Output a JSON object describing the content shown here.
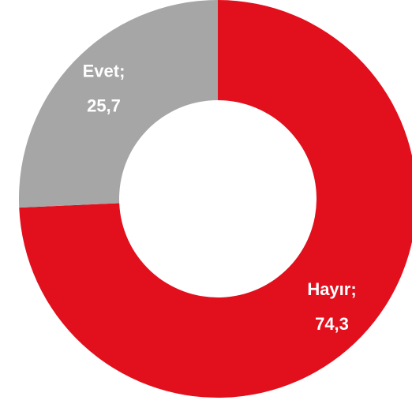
{
  "chart_data": {
    "type": "donut",
    "categories": [
      "Hayır;",
      "Evet;"
    ],
    "values": [
      74.3,
      25.7
    ],
    "value_labels": [
      "74,3",
      "25,7"
    ],
    "colors": [
      "#e20f1d",
      "#a6a6a6"
    ]
  }
}
